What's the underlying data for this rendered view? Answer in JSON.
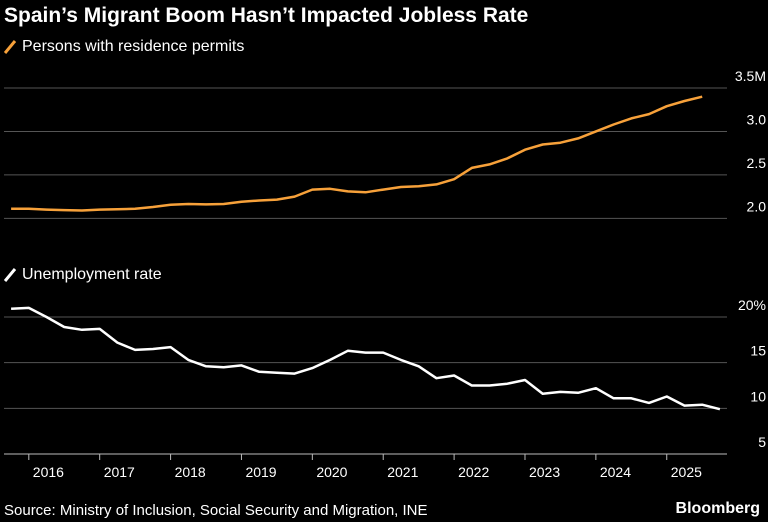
{
  "title": "Spain’s Migrant Boom Hasn’t Impacted Jobless Rate",
  "source": "Source: Ministry of Inclusion, Social Security and Migration, INE",
  "brand": "Bloomberg",
  "colors": {
    "permits": "#f7a13a",
    "unemployment": "#ffffff",
    "grid": "#555555",
    "background": "#000000"
  },
  "chart_data": [
    {
      "type": "line",
      "legend_label": "Persons with residence permits",
      "y_ticks": [
        {
          "value": 2.0,
          "label": "2.0"
        },
        {
          "value": 2.5,
          "label": "2.5"
        },
        {
          "value": 3.0,
          "label": "3.0"
        },
        {
          "value": 3.5,
          "label": "3.5M"
        }
      ],
      "ylim": [
        1.9,
        3.5
      ],
      "xlim": [
        2015.65,
        2025.85
      ],
      "series": [
        {
          "x": [
            2015.75,
            2016.0,
            2016.25,
            2016.5,
            2016.75,
            2017.0,
            2017.25,
            2017.5,
            2017.75,
            2018.0,
            2018.25,
            2018.5,
            2018.75,
            2019.0,
            2019.25,
            2019.5,
            2019.75,
            2020.0,
            2020.25,
            2020.5,
            2020.75,
            2021.0,
            2021.25,
            2021.5,
            2021.75,
            2022.0,
            2022.25,
            2022.5,
            2022.75,
            2023.0,
            2023.25,
            2023.5,
            2023.75,
            2024.0,
            2024.25,
            2024.5,
            2024.75,
            2025.0,
            2025.25,
            2025.5
          ],
          "values": [
            2.11,
            2.11,
            2.1,
            2.095,
            2.09,
            2.1,
            2.105,
            2.11,
            2.13,
            2.155,
            2.165,
            2.16,
            2.165,
            2.19,
            2.205,
            2.215,
            2.25,
            2.33,
            2.34,
            2.31,
            2.3,
            2.33,
            2.36,
            2.37,
            2.39,
            2.45,
            2.58,
            2.62,
            2.69,
            2.79,
            2.85,
            2.87,
            2.92,
            3.0,
            3.08,
            3.15,
            3.2,
            3.29,
            3.35,
            3.4
          ]
        }
      ]
    },
    {
      "type": "line",
      "legend_label": "Unemployment rate",
      "y_ticks": [
        {
          "value": 5,
          "label": "5"
        },
        {
          "value": 10,
          "label": "10"
        },
        {
          "value": 15,
          "label": "15"
        },
        {
          "value": 20,
          "label": "20%"
        }
      ],
      "ylim": [
        5,
        20
      ],
      "xlim": [
        2015.65,
        2025.85
      ],
      "x_ticks": [
        "2016",
        "2017",
        "2018",
        "2019",
        "2020",
        "2021",
        "2022",
        "2023",
        "2024",
        "2025"
      ],
      "series": [
        {
          "x": [
            2015.75,
            2016.0,
            2016.25,
            2016.5,
            2016.75,
            2017.0,
            2017.25,
            2017.5,
            2017.75,
            2018.0,
            2018.25,
            2018.5,
            2018.75,
            2019.0,
            2019.25,
            2019.5,
            2019.75,
            2020.0,
            2020.25,
            2020.5,
            2020.75,
            2021.0,
            2021.25,
            2021.5,
            2021.75,
            2022.0,
            2022.25,
            2022.5,
            2022.75,
            2023.0,
            2023.25,
            2023.5,
            2023.75,
            2024.0,
            2024.25,
            2024.5,
            2024.75,
            2025.0,
            2025.25,
            2025.5,
            2025.75
          ],
          "values": [
            20.9,
            21.0,
            20.0,
            18.9,
            18.6,
            18.7,
            17.2,
            16.4,
            16.5,
            16.7,
            15.3,
            14.6,
            14.5,
            14.7,
            14.0,
            13.9,
            13.8,
            14.4,
            15.3,
            16.3,
            16.1,
            16.1,
            15.3,
            14.6,
            13.3,
            13.6,
            12.5,
            12.5,
            12.7,
            13.1,
            11.6,
            11.8,
            11.7,
            12.2,
            11.1,
            11.1,
            10.6,
            11.3,
            10.3,
            10.4,
            9.9
          ]
        }
      ]
    }
  ]
}
